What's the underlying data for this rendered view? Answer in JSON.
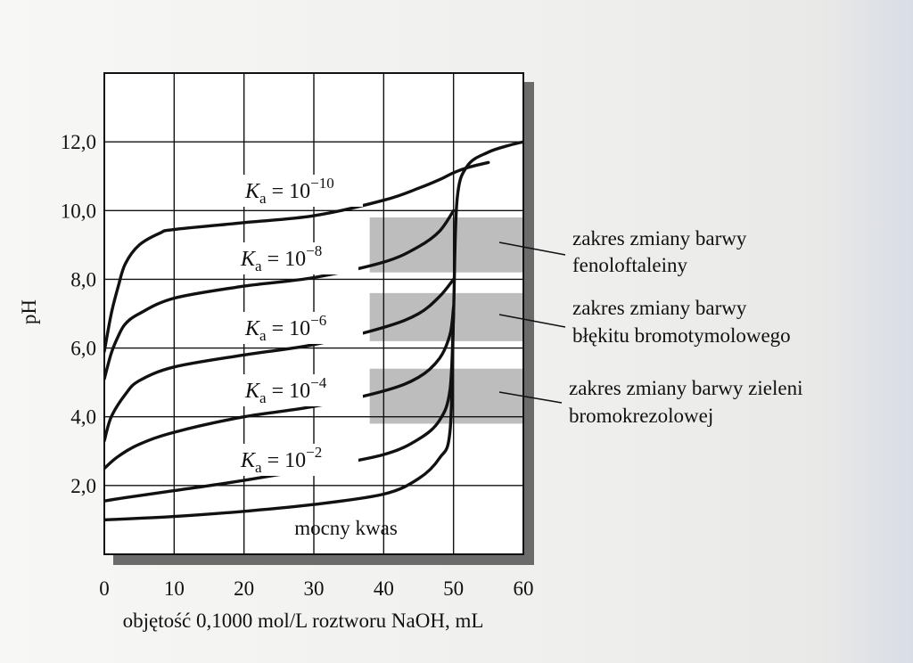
{
  "chart_data": {
    "type": "line",
    "title": "",
    "xlabel": "objętość 0,1000 mol/L roztworu NaOH, mL",
    "ylabel": "pH",
    "xlim": [
      0,
      60
    ],
    "ylim": [
      0,
      14
    ],
    "grid": true,
    "x_ticks": [
      "0",
      "10",
      "20",
      "30",
      "40",
      "50",
      "60"
    ],
    "y_ticks": [
      "2,0",
      "4,0",
      "6,0",
      "8,0",
      "10,0",
      "12,0"
    ],
    "y_tick_values": [
      2,
      4,
      6,
      8,
      10,
      12
    ],
    "series": [
      {
        "name": "mocny kwas",
        "x": [
          0,
          10,
          20,
          30,
          40,
          45,
          48,
          49.5,
          50,
          50.5,
          52,
          55,
          58,
          60
        ],
        "y": [
          1.0,
          1.1,
          1.25,
          1.45,
          1.75,
          2.2,
          2.8,
          3.6,
          7.0,
          10.3,
          11.3,
          11.7,
          11.9,
          12.0
        ]
      },
      {
        "name": "K_a = 10^-2",
        "x": [
          0,
          3,
          10,
          20,
          30,
          40,
          45,
          48,
          49.5,
          50
        ],
        "y": [
          1.55,
          1.65,
          1.85,
          2.15,
          2.5,
          2.9,
          3.35,
          3.9,
          4.8,
          7.0
        ]
      },
      {
        "name": "K_a = 10^-4",
        "x": [
          0,
          2,
          5,
          10,
          20,
          30,
          40,
          45,
          48,
          49.5,
          50
        ],
        "y": [
          2.5,
          2.85,
          3.2,
          3.55,
          4.0,
          4.3,
          4.75,
          5.15,
          5.7,
          6.4,
          7.2
        ]
      },
      {
        "name": "K_a = 10^-6",
        "x": [
          0,
          1,
          3,
          5,
          10,
          20,
          30,
          40,
          45,
          48,
          50
        ],
        "y": [
          3.3,
          4.0,
          4.65,
          5.05,
          5.45,
          5.8,
          6.1,
          6.6,
          7.0,
          7.5,
          8.0
        ]
      },
      {
        "name": "K_a = 10^-8",
        "x": [
          0,
          1,
          2,
          3,
          5,
          10,
          20,
          30,
          40,
          45,
          48,
          50
        ],
        "y": [
          5.1,
          5.85,
          6.35,
          6.7,
          7.0,
          7.45,
          7.8,
          8.05,
          8.5,
          8.95,
          9.4,
          10.0
        ]
      },
      {
        "name": "K_a = 10^-10",
        "x": [
          0,
          1,
          2,
          3,
          5,
          8,
          10,
          20,
          30,
          40,
          45,
          48,
          50,
          52,
          55
        ],
        "y": [
          5.9,
          7.0,
          7.8,
          8.45,
          9.0,
          9.35,
          9.45,
          9.65,
          9.85,
          10.3,
          10.65,
          10.9,
          11.1,
          11.25,
          11.4
        ]
      }
    ],
    "ka_labels": [
      {
        "base": "K",
        "sub": "a",
        "eq": " = 10",
        "exp": "−10"
      },
      {
        "base": "K",
        "sub": "a",
        "eq": " = 10",
        "exp": "−8"
      },
      {
        "base": "K",
        "sub": "a",
        "eq": " = 10",
        "exp": "−6"
      },
      {
        "base": "K",
        "sub": "a",
        "eq": " = 10",
        "exp": "−4"
      },
      {
        "base": "K",
        "sub": "a",
        "eq": " = 10",
        "exp": "−2"
      }
    ],
    "strong_acid_label": "mocny kwas",
    "indicator_bands": [
      {
        "indicator": "fenoloftaleina",
        "line1": "zakres zmiany barwy",
        "line2": "fenoloftaleiny",
        "x_range": [
          38,
          60
        ],
        "ph_range": [
          8.2,
          9.8
        ],
        "color": "#bdbdbd"
      },
      {
        "indicator": "błękit bromotymolowy",
        "line1": "zakres zmiany barwy",
        "line2": "błękitu bromotymolowego",
        "x_range": [
          38,
          60
        ],
        "ph_range": [
          6.2,
          7.6
        ],
        "color": "#bdbdbd"
      },
      {
        "indicator": "zieleń bromokrezolowa",
        "line1": "zakres zmiany barwy zieleni",
        "line2": "bromokrezolowej",
        "x_range": [
          38,
          60
        ],
        "ph_range": [
          3.8,
          5.4
        ],
        "color": "#bdbdbd"
      }
    ],
    "colors": {
      "curve": "#111111",
      "band": "#bdbdbd",
      "grid": "#111111",
      "shadow": "#6b6b6b"
    }
  }
}
